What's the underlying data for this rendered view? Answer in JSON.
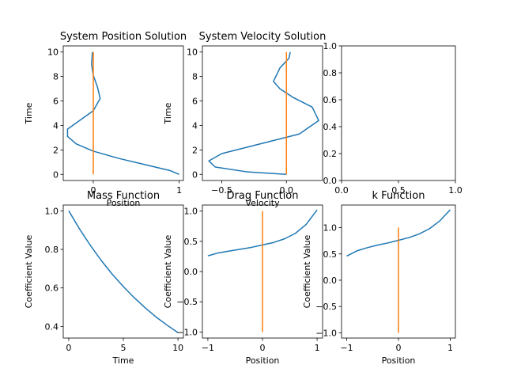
{
  "chart_data": [
    {
      "type": "line",
      "title": "System Position Solution",
      "xlabel": "Position",
      "ylabel": "Time",
      "xlim": [
        -0.35,
        1.05
      ],
      "ylim": [
        -0.5,
        10.5
      ],
      "xticks": [
        {
          "v": 0,
          "t": "0"
        },
        {
          "v": 1,
          "t": "1"
        }
      ],
      "yticks": [
        {
          "v": 0,
          "t": "0"
        },
        {
          "v": 2,
          "t": "2"
        },
        {
          "v": 4,
          "t": "4"
        },
        {
          "v": 6,
          "t": "6"
        },
        {
          "v": 8,
          "t": "8"
        },
        {
          "v": 10,
          "t": "10"
        }
      ],
      "series": [
        {
          "color": "#1f77b4",
          "x": [
            1.0,
            0.9,
            0.6,
            0.3,
            0.0,
            -0.2,
            -0.3,
            -0.3,
            -0.2,
            0.0,
            0.08,
            0.05,
            0.0,
            -0.02,
            -0.01
          ],
          "y": [
            0,
            0.3,
            0.8,
            1.3,
            1.9,
            2.5,
            3.1,
            3.7,
            4.2,
            5.2,
            6.2,
            7.1,
            8.1,
            9.0,
            10
          ]
        },
        {
          "color": "#ff7f0e",
          "x": [
            0,
            0
          ],
          "y": [
            0,
            10
          ]
        }
      ]
    },
    {
      "type": "line",
      "title": "System Velocity Solution",
      "xlabel": "Velocity",
      "ylabel": "Time",
      "xlim": [
        -0.65,
        0.28
      ],
      "ylim": [
        -0.5,
        10.5
      ],
      "xticks": [
        {
          "v": -0.5,
          "t": "−0.5"
        },
        {
          "v": 0,
          "t": "0.0"
        }
      ],
      "yticks": [
        {
          "v": 0,
          "t": "0"
        },
        {
          "v": 2,
          "t": "2"
        },
        {
          "v": 4,
          "t": "4"
        },
        {
          "v": 6,
          "t": "6"
        },
        {
          "v": 8,
          "t": "8"
        },
        {
          "v": 10,
          "t": "10"
        }
      ],
      "series": [
        {
          "color": "#1f77b4",
          "x": [
            0.0,
            -0.3,
            -0.55,
            -0.6,
            -0.5,
            -0.2,
            0.1,
            0.25,
            0.2,
            0.05,
            -0.05,
            -0.1,
            -0.05,
            0.02,
            0.03
          ],
          "y": [
            0,
            0.2,
            0.6,
            1.1,
            1.7,
            2.5,
            3.3,
            4.4,
            5.5,
            6.3,
            7.0,
            7.6,
            8.7,
            9.5,
            10
          ]
        },
        {
          "color": "#ff7f0e",
          "x": [
            0,
            0
          ],
          "y": [
            0,
            10
          ]
        }
      ]
    },
    {
      "type": "line",
      "title": "",
      "xlabel": "",
      "ylabel": "",
      "xlim": [
        0,
        1
      ],
      "ylim": [
        0,
        1
      ],
      "xticks": [
        {
          "v": 0,
          "t": "0.0"
        },
        {
          "v": 0.5,
          "t": "0.5"
        },
        {
          "v": 1,
          "t": "1.0"
        }
      ],
      "yticks": [
        {
          "v": 0,
          "t": "0.0"
        },
        {
          "v": 0.2,
          "t": "0.2"
        },
        {
          "v": 0.4,
          "t": "0.4"
        },
        {
          "v": 0.6,
          "t": "0.6"
        },
        {
          "v": 0.8,
          "t": "0.8"
        },
        {
          "v": 1,
          "t": "1.0"
        }
      ],
      "series": []
    },
    {
      "type": "line",
      "title": "Mass Function",
      "xlabel": "Time",
      "ylabel": "Coefficient Value",
      "xlim": [
        -0.5,
        10.5
      ],
      "ylim": [
        0.34,
        1.03
      ],
      "xticks": [
        {
          "v": 0,
          "t": "0"
        },
        {
          "v": 5,
          "t": "5"
        },
        {
          "v": 10,
          "t": "10"
        }
      ],
      "yticks": [
        {
          "v": 0.4,
          "t": "0.4"
        },
        {
          "v": 0.6,
          "t": "0.6"
        },
        {
          "v": 0.8,
          "t": "0.8"
        },
        {
          "v": 1.0,
          "t": "1.0"
        }
      ],
      "series": [
        {
          "color": "#1f77b4",
          "x": [
            0,
            1,
            2,
            3,
            4,
            5,
            6,
            7,
            8,
            9,
            10
          ],
          "y": [
            1.0,
            0.905,
            0.819,
            0.741,
            0.67,
            0.607,
            0.549,
            0.497,
            0.449,
            0.407,
            0.368
          ]
        }
      ]
    },
    {
      "type": "line",
      "title": "Drag Function",
      "xlabel": "Position",
      "ylabel": "Coefficient Value",
      "xlim": [
        -1.1,
        1.1
      ],
      "ylim": [
        -1.1,
        1.1
      ],
      "xticks": [
        {
          "v": -1,
          "t": "−1"
        },
        {
          "v": 0,
          "t": "0"
        },
        {
          "v": 1,
          "t": "1"
        }
      ],
      "yticks": [
        {
          "v": -1,
          "t": "−1.0"
        },
        {
          "v": -0.5,
          "t": "−0.5"
        },
        {
          "v": 0,
          "t": "0.0"
        },
        {
          "v": 0.5,
          "t": "0.5"
        },
        {
          "v": 1,
          "t": "1.0"
        }
      ],
      "series": [
        {
          "color": "#1f77b4",
          "x": [
            -1,
            -0.8,
            -0.6,
            -0.4,
            -0.2,
            0,
            0.2,
            0.4,
            0.6,
            0.8,
            1
          ],
          "y": [
            0.26,
            0.31,
            0.34,
            0.37,
            0.4,
            0.44,
            0.48,
            0.54,
            0.63,
            0.78,
            1.02
          ]
        },
        {
          "color": "#ff7f0e",
          "x": [
            0,
            0
          ],
          "y": [
            -1,
            1
          ]
        }
      ]
    },
    {
      "type": "line",
      "title": "k Function",
      "xlabel": "Position",
      "ylabel": "Coefficient Value",
      "xlim": [
        -1.1,
        1.1
      ],
      "ylim": [
        -1.1,
        1.43
      ],
      "xticks": [
        {
          "v": -1,
          "t": "−1"
        },
        {
          "v": 0,
          "t": "0"
        },
        {
          "v": 1,
          "t": "1"
        }
      ],
      "yticks": [
        {
          "v": -1,
          "t": "−1.0"
        },
        {
          "v": -0.5,
          "t": "−0.5"
        },
        {
          "v": 0,
          "t": "0.0"
        },
        {
          "v": 0.5,
          "t": "0.5"
        },
        {
          "v": 1,
          "t": "1.0"
        }
      ],
      "series": [
        {
          "color": "#1f77b4",
          "x": [
            -1,
            -0.8,
            -0.6,
            -0.4,
            -0.2,
            0,
            0.2,
            0.4,
            0.6,
            0.8,
            1
          ],
          "y": [
            0.46,
            0.56,
            0.62,
            0.67,
            0.71,
            0.76,
            0.81,
            0.88,
            0.98,
            1.13,
            1.34
          ]
        },
        {
          "color": "#ff7f0e",
          "x": [
            0,
            0
          ],
          "y": [
            -1,
            1
          ]
        }
      ]
    }
  ]
}
